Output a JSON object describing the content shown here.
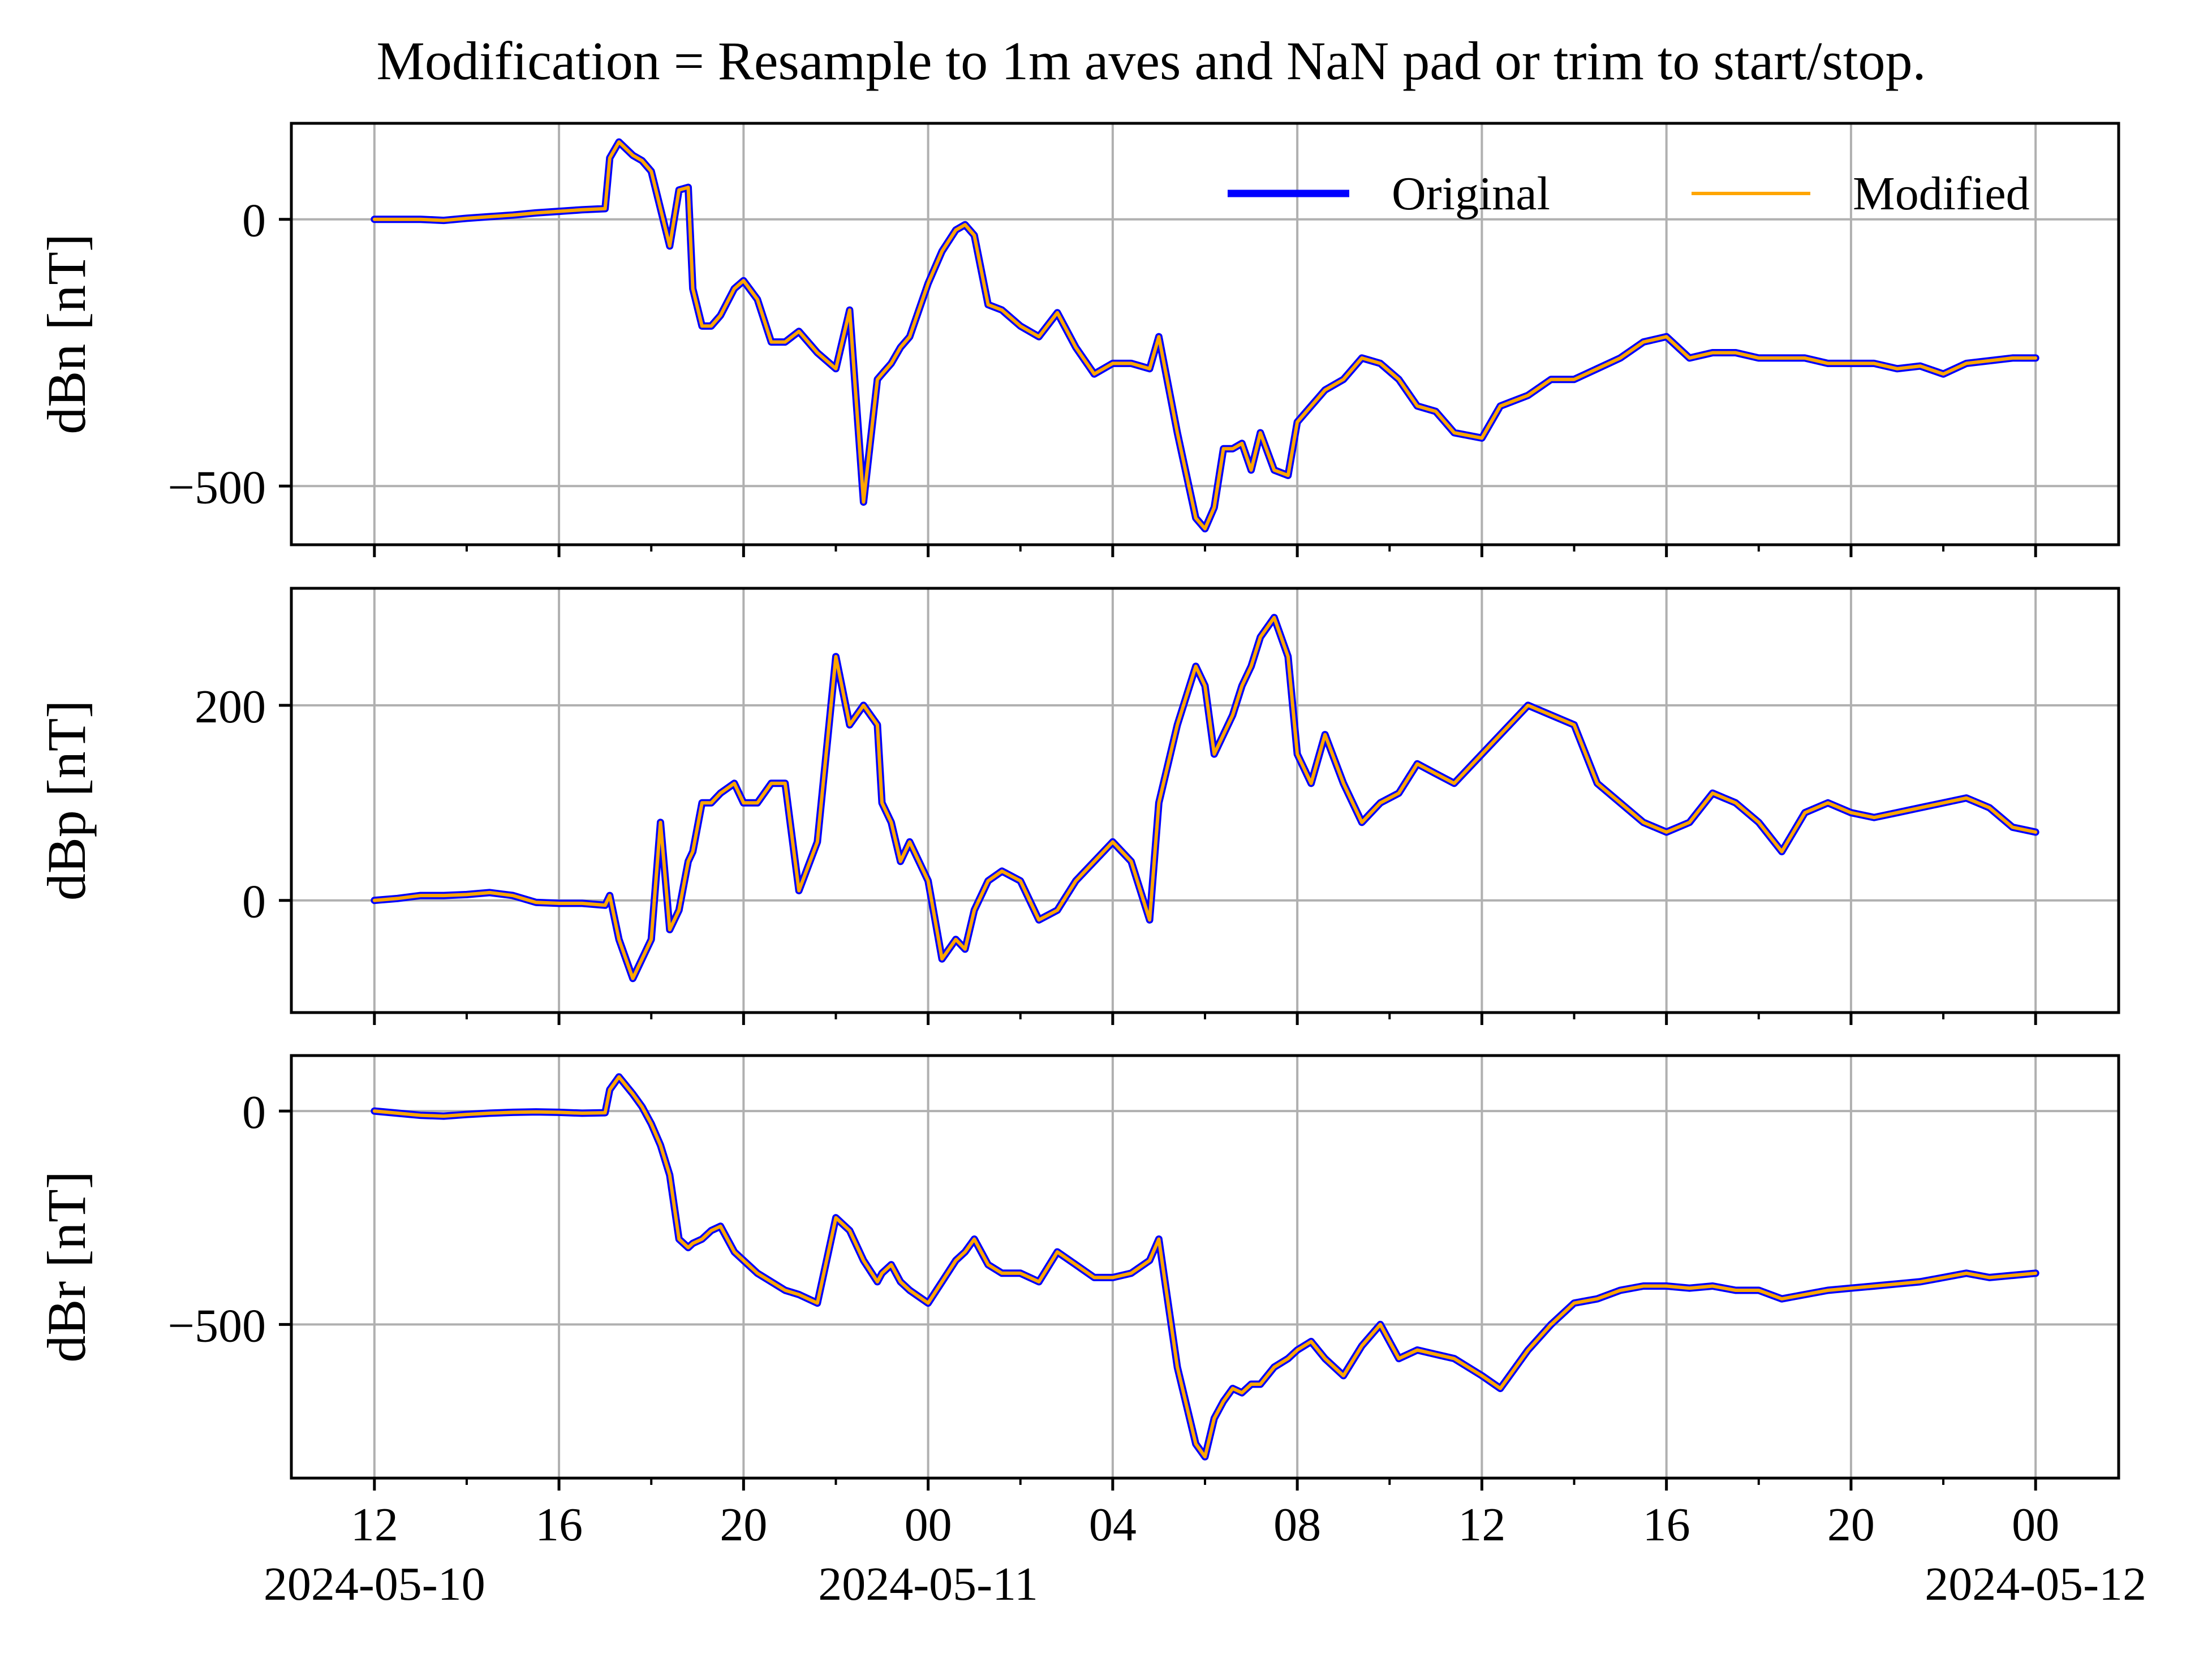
{
  "title": "Modification = Resample to 1m aves and NaN pad or trim to start/stop.",
  "legend": {
    "placement": "upper-right",
    "columns": 2,
    "entries": [
      {
        "label": "Original",
        "color": "#0000ff"
      },
      {
        "label": "Modified",
        "color": "#ffa500"
      }
    ]
  },
  "chart_data": [
    {
      "type": "line",
      "ylabel": "dBn [nT]",
      "ylim": [
        -610,
        180
      ],
      "yticks": [
        {
          "value": 0,
          "label": "0"
        },
        {
          "value": -500,
          "label": "−500"
        }
      ],
      "grid": true,
      "x": [
        0,
        0.5,
        1,
        1.5,
        2,
        2.5,
        3,
        3.5,
        4,
        4.5,
        5,
        5.1,
        5.3,
        5.6,
        5.8,
        6,
        6.2,
        6.4,
        6.6,
        6.8,
        6.9,
        7.1,
        7.3,
        7.5,
        7.8,
        8,
        8.3,
        8.6,
        8.9,
        9.2,
        9.6,
        10,
        10.3,
        10.6,
        10.9,
        11,
        11.2,
        11.4,
        11.6,
        12,
        12.3,
        12.6,
        12.8,
        13,
        13.3,
        13.6,
        14,
        14.4,
        14.8,
        15.2,
        15.6,
        16,
        16.4,
        16.8,
        17,
        17.4,
        17.8,
        18,
        18.2,
        18.4,
        18.6,
        18.8,
        19,
        19.2,
        19.5,
        19.8,
        20,
        20.3,
        20.6,
        21,
        21.4,
        21.8,
        22.2,
        22.6,
        23,
        23.4,
        24,
        24.4,
        25,
        25.5,
        26,
        26.5,
        27,
        27.5,
        28,
        28.5,
        29,
        29.5,
        30,
        30.5,
        31,
        31.5,
        32,
        32.5,
        33,
        33.5,
        34,
        34.5,
        35,
        35.5,
        36
      ],
      "series": [
        {
          "name": "Original",
          "values": [
            0,
            0,
            0,
            -2,
            2,
            5,
            8,
            12,
            15,
            18,
            20,
            115,
            145,
            120,
            110,
            90,
            20,
            -50,
            55,
            60,
            -130,
            -200,
            -200,
            -180,
            -130,
            -115,
            -150,
            -230,
            -230,
            -210,
            -250,
            -280,
            -170,
            -530,
            -300,
            -290,
            -270,
            -240,
            -220,
            -120,
            -60,
            -20,
            -10,
            -30,
            -160,
            -170,
            -200,
            -220,
            -175,
            -240,
            -290,
            -270,
            -270,
            -280,
            -220,
            -400,
            -560,
            -580,
            -540,
            -430,
            -430,
            -420,
            -470,
            -400,
            -470,
            -480,
            -380,
            -350,
            -320,
            -300,
            -260,
            -270,
            -300,
            -350,
            -360,
            -400,
            -410,
            -350,
            -330,
            -300,
            -300,
            -280,
            -260,
            -230,
            -220,
            -260,
            -250,
            -250,
            -260,
            -260,
            -260,
            -270,
            -270,
            -270,
            -280,
            -275,
            -290,
            -270,
            -265,
            -260,
            -260
          ]
        },
        {
          "name": "Modified",
          "values": [
            0,
            0,
            0,
            -2,
            2,
            5,
            8,
            12,
            15,
            18,
            20,
            115,
            145,
            120,
            110,
            90,
            20,
            -50,
            55,
            60,
            -130,
            -200,
            -200,
            -180,
            -130,
            -115,
            -150,
            -230,
            -230,
            -210,
            -250,
            -280,
            -170,
            -530,
            -300,
            -290,
            -270,
            -240,
            -220,
            -120,
            -60,
            -20,
            -10,
            -30,
            -160,
            -170,
            -200,
            -220,
            -175,
            -240,
            -290,
            -270,
            -270,
            -280,
            -220,
            -400,
            -560,
            -580,
            -540,
            -430,
            -430,
            -420,
            -470,
            -400,
            -470,
            -480,
            -380,
            -350,
            -320,
            -300,
            -260,
            -270,
            -300,
            -350,
            -360,
            -400,
            -410,
            -350,
            -330,
            -300,
            -300,
            -280,
            -260,
            -230,
            -220,
            -260,
            -250,
            -250,
            -260,
            -260,
            -260,
            -270,
            -270,
            -270,
            -280,
            -275,
            -290,
            -270,
            -265,
            -260,
            -260
          ]
        }
      ]
    },
    {
      "type": "line",
      "ylabel": "dBp [nT]",
      "ylim": [
        -115,
        320
      ],
      "yticks": [
        {
          "value": 200,
          "label": "200"
        },
        {
          "value": 0,
          "label": "0"
        }
      ],
      "grid": true,
      "x": [
        0,
        0.5,
        1,
        1.5,
        2,
        2.5,
        3,
        3.5,
        4,
        4.5,
        5,
        5.1,
        5.3,
        5.6,
        5.8,
        6,
        6.2,
        6.4,
        6.6,
        6.8,
        6.9,
        7.1,
        7.3,
        7.5,
        7.8,
        8,
        8.3,
        8.6,
        8.9,
        9.2,
        9.6,
        10,
        10.3,
        10.6,
        10.9,
        11,
        11.2,
        11.4,
        11.6,
        12,
        12.3,
        12.6,
        12.8,
        13,
        13.3,
        13.6,
        14,
        14.4,
        14.8,
        15.2,
        15.6,
        16,
        16.4,
        16.8,
        17,
        17.4,
        17.8,
        18,
        18.2,
        18.4,
        18.6,
        18.8,
        19,
        19.2,
        19.5,
        19.8,
        20,
        20.3,
        20.6,
        21,
        21.4,
        21.8,
        22.2,
        22.6,
        23,
        23.4,
        24,
        24.4,
        25,
        25.5,
        26,
        26.5,
        27,
        27.5,
        28,
        28.5,
        29,
        29.5,
        30,
        30.5,
        31,
        31.5,
        32,
        32.5,
        33,
        33.5,
        34,
        34.5,
        35,
        35.5,
        36
      ],
      "series": [
        {
          "name": "Original",
          "values": [
            0,
            2,
            5,
            5,
            6,
            8,
            5,
            -2,
            -3,
            -3,
            -5,
            5,
            -40,
            -80,
            -60,
            -40,
            80,
            -30,
            -10,
            40,
            50,
            100,
            100,
            110,
            120,
            100,
            100,
            120,
            120,
            10,
            60,
            250,
            180,
            200,
            180,
            100,
            80,
            40,
            60,
            20,
            -60,
            -40,
            -50,
            -10,
            20,
            30,
            20,
            -20,
            -10,
            20,
            40,
            60,
            40,
            -20,
            100,
            180,
            240,
            220,
            150,
            170,
            190,
            220,
            240,
            270,
            290,
            250,
            150,
            120,
            170,
            120,
            80,
            100,
            110,
            140,
            130,
            120,
            150,
            170,
            200,
            190,
            180,
            120,
            100,
            80,
            70,
            80,
            110,
            100,
            80,
            50,
            90,
            100,
            90,
            85,
            90,
            95,
            100,
            105,
            95,
            75,
            70
          ]
        },
        {
          "name": "Modified",
          "values": [
            0,
            2,
            5,
            5,
            6,
            8,
            5,
            -2,
            -3,
            -3,
            -5,
            5,
            -40,
            -80,
            -60,
            -40,
            80,
            -30,
            -10,
            40,
            50,
            100,
            100,
            110,
            120,
            100,
            100,
            120,
            120,
            10,
            60,
            250,
            180,
            200,
            180,
            100,
            80,
            40,
            60,
            20,
            -60,
            -40,
            -50,
            -10,
            20,
            30,
            20,
            -20,
            -10,
            20,
            40,
            60,
            40,
            -20,
            100,
            180,
            240,
            220,
            150,
            170,
            190,
            220,
            240,
            270,
            290,
            250,
            150,
            120,
            170,
            120,
            80,
            100,
            110,
            140,
            130,
            120,
            150,
            170,
            200,
            190,
            180,
            120,
            100,
            80,
            70,
            80,
            110,
            100,
            80,
            50,
            90,
            100,
            90,
            85,
            90,
            95,
            100,
            105,
            95,
            75,
            70
          ]
        }
      ]
    },
    {
      "type": "line",
      "ylabel": "dBr [nT]",
      "ylim": [
        -860,
        130
      ],
      "yticks": [
        {
          "value": 0,
          "label": "0"
        },
        {
          "value": -500,
          "label": "−500"
        }
      ],
      "grid": true,
      "x": [
        0,
        0.5,
        1,
        1.5,
        2,
        2.5,
        3,
        3.5,
        4,
        4.5,
        5,
        5.1,
        5.3,
        5.6,
        5.8,
        6,
        6.2,
        6.4,
        6.6,
        6.8,
        6.9,
        7.1,
        7.3,
        7.5,
        7.8,
        8,
        8.3,
        8.6,
        8.9,
        9.2,
        9.6,
        10,
        10.3,
        10.6,
        10.9,
        11,
        11.2,
        11.4,
        11.6,
        12,
        12.3,
        12.6,
        12.8,
        13,
        13.3,
        13.6,
        14,
        14.4,
        14.8,
        15.2,
        15.6,
        16,
        16.4,
        16.8,
        17,
        17.4,
        17.8,
        18,
        18.2,
        18.4,
        18.6,
        18.8,
        19,
        19.2,
        19.5,
        19.8,
        20,
        20.3,
        20.6,
        21,
        21.4,
        21.8,
        22.2,
        22.6,
        23,
        23.4,
        24,
        24.4,
        25,
        25.5,
        26,
        26.5,
        27,
        27.5,
        28,
        28.5,
        29,
        29.5,
        30,
        30.5,
        31,
        31.5,
        32,
        32.5,
        33,
        33.5,
        34,
        34.5,
        35,
        35.5,
        36
      ],
      "series": [
        {
          "name": "Original",
          "values": [
            0,
            -5,
            -10,
            -12,
            -8,
            -5,
            -3,
            -2,
            -3,
            -5,
            -4,
            50,
            80,
            40,
            10,
            -30,
            -80,
            -150,
            -300,
            -320,
            -310,
            -300,
            -280,
            -270,
            -330,
            -350,
            -380,
            -400,
            -420,
            -430,
            -450,
            -250,
            -280,
            -350,
            -400,
            -380,
            -360,
            -400,
            -420,
            -450,
            -400,
            -350,
            -330,
            -300,
            -360,
            -380,
            -380,
            -400,
            -330,
            -360,
            -390,
            -390,
            -380,
            -350,
            -300,
            -600,
            -780,
            -810,
            -720,
            -680,
            -650,
            -660,
            -640,
            -640,
            -600,
            -580,
            -560,
            -540,
            -580,
            -620,
            -550,
            -500,
            -580,
            -560,
            -570,
            -580,
            -620,
            -650,
            -560,
            -500,
            -450,
            -440,
            -420,
            -410,
            -410,
            -415,
            -410,
            -420,
            -420,
            -440,
            -430,
            -420,
            -415,
            -410,
            -405,
            -400,
            -390,
            -380,
            -390,
            -385,
            -380
          ]
        },
        {
          "name": "Modified",
          "values": [
            0,
            -5,
            -10,
            -12,
            -8,
            -5,
            -3,
            -2,
            -3,
            -5,
            -4,
            50,
            80,
            40,
            10,
            -30,
            -80,
            -150,
            -300,
            -320,
            -310,
            -300,
            -280,
            -270,
            -330,
            -350,
            -380,
            -400,
            -420,
            -430,
            -450,
            -250,
            -280,
            -350,
            -400,
            -380,
            -360,
            -400,
            -420,
            -450,
            -400,
            -350,
            -330,
            -300,
            -360,
            -380,
            -380,
            -400,
            -330,
            -360,
            -390,
            -390,
            -380,
            -350,
            -300,
            -600,
            -780,
            -810,
            -720,
            -680,
            -650,
            -660,
            -640,
            -640,
            -600,
            -580,
            -560,
            -540,
            -580,
            -620,
            -550,
            -500,
            -580,
            -560,
            -570,
            -580,
            -620,
            -650,
            -560,
            -500,
            -450,
            -440,
            -420,
            -410,
            -410,
            -415,
            -410,
            -420,
            -420,
            -440,
            -430,
            -420,
            -415,
            -410,
            -405,
            -400,
            -390,
            -380,
            -390,
            -385,
            -380
          ]
        }
      ]
    }
  ],
  "x_axis": {
    "xlim": [
      -1.8,
      37.8
    ],
    "major_ticks": [
      {
        "value": 0,
        "label": "12"
      },
      {
        "value": 4,
        "label": "16"
      },
      {
        "value": 8,
        "label": "20"
      },
      {
        "value": 12,
        "label": "00"
      },
      {
        "value": 16,
        "label": "04"
      },
      {
        "value": 20,
        "label": "08"
      },
      {
        "value": 24,
        "label": "12"
      },
      {
        "value": 28,
        "label": "16"
      },
      {
        "value": 32,
        "label": "20"
      },
      {
        "value": 36,
        "label": "00"
      }
    ],
    "minor_ticks": [
      2,
      6,
      10,
      14,
      18,
      22,
      26,
      30,
      34
    ],
    "date_labels": [
      {
        "value": 0,
        "label": "2024-05-10"
      },
      {
        "value": 12,
        "label": "2024-05-11"
      },
      {
        "value": 36,
        "label": "2024-05-12"
      }
    ]
  }
}
